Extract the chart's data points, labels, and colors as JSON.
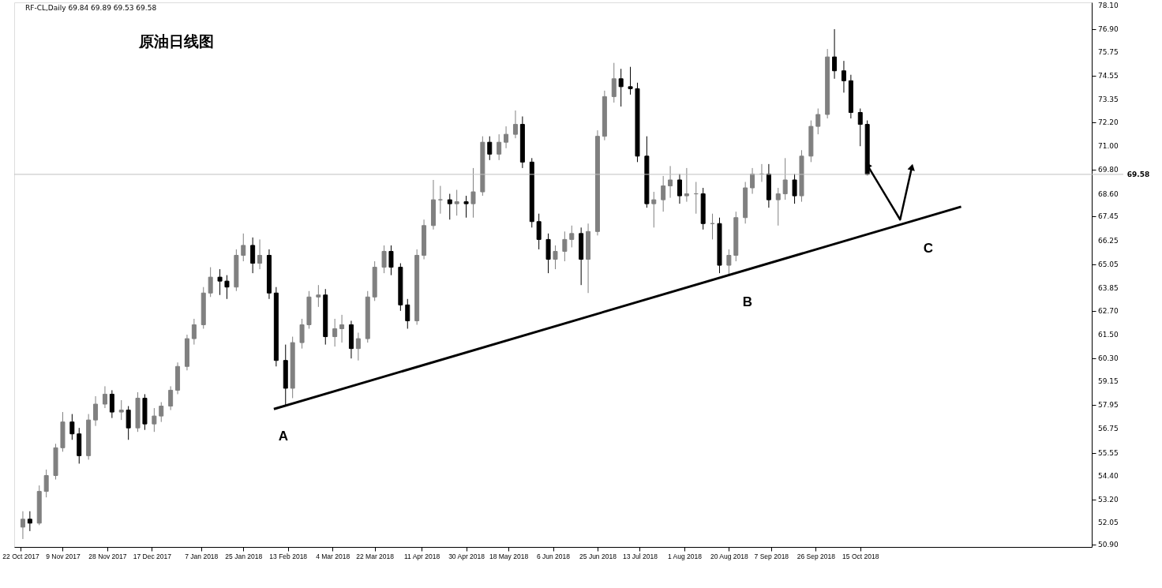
{
  "chart_data": {
    "type": "candlestick",
    "title": "原油日线图",
    "annotations": [
      "RF-CL,Daily  69.84 69.89 69.53 69.58",
      "A",
      "B",
      "C"
    ],
    "x": [
      "2017-10-23",
      "2017-10-26",
      "2017-10-30",
      "2017-11-02",
      "2017-11-06",
      "2017-11-09",
      "2017-11-13",
      "2017-11-16",
      "2017-11-20",
      "2017-11-23",
      "2017-11-27",
      "2017-11-30",
      "2017-12-04",
      "2017-12-07",
      "2017-12-11",
      "2017-12-14",
      "2017-12-18",
      "2017-12-21",
      "2017-12-25",
      "2017-12-28",
      "2018-01-01",
      "2018-01-04",
      "2018-01-08",
      "2018-01-11",
      "2018-01-15",
      "2018-01-18",
      "2018-01-22",
      "2018-01-25",
      "2018-01-29",
      "2018-02-01",
      "2018-02-05",
      "2018-02-08",
      "2018-02-12",
      "2018-02-15",
      "2018-02-19",
      "2018-02-22",
      "2018-02-26",
      "2018-03-01",
      "2018-03-05",
      "2018-03-08",
      "2018-03-12",
      "2018-03-15",
      "2018-03-19",
      "2018-03-22",
      "2018-03-26",
      "2018-03-29",
      "2018-04-02",
      "2018-04-05",
      "2018-04-09",
      "2018-04-12",
      "2018-04-16",
      "2018-04-19",
      "2018-04-23",
      "2018-04-26",
      "2018-04-30",
      "2018-05-03",
      "2018-05-07",
      "2018-05-10",
      "2018-05-14",
      "2018-05-17",
      "2018-05-21",
      "2018-05-24",
      "2018-05-28",
      "2018-05-31",
      "2018-06-04",
      "2018-06-07",
      "2018-06-11",
      "2018-06-14",
      "2018-06-18",
      "2018-06-21",
      "2018-06-25",
      "2018-06-28",
      "2018-07-02",
      "2018-07-05",
      "2018-07-09",
      "2018-07-12",
      "2018-07-16",
      "2018-07-19",
      "2018-07-23",
      "2018-07-26",
      "2018-07-30",
      "2018-08-02",
      "2018-08-06",
      "2018-08-09",
      "2018-08-13",
      "2018-08-16",
      "2018-08-20",
      "2018-08-23",
      "2018-08-27",
      "2018-08-30",
      "2018-09-03",
      "2018-09-06",
      "2018-09-10",
      "2018-09-13",
      "2018-09-17",
      "2018-09-20",
      "2018-09-24",
      "2018-09-27",
      "2018-10-01",
      "2018-10-04",
      "2018-10-08",
      "2018-10-11",
      "2018-10-15",
      "2018-10-18"
    ],
    "ohlc": [
      [
        51.8,
        52.6,
        51.2,
        52.2
      ],
      [
        52.2,
        52.6,
        51.6,
        52.0
      ],
      [
        52.0,
        53.9,
        51.9,
        53.6
      ],
      [
        53.6,
        54.7,
        53.3,
        54.4
      ],
      [
        54.4,
        56.0,
        54.2,
        55.8
      ],
      [
        55.8,
        57.6,
        55.6,
        57.1
      ],
      [
        57.1,
        57.5,
        56.2,
        56.5
      ],
      [
        56.5,
        56.8,
        55.0,
        55.4
      ],
      [
        55.4,
        57.5,
        55.2,
        57.2
      ],
      [
        57.2,
        58.4,
        56.9,
        58.0
      ],
      [
        58.0,
        58.9,
        57.8,
        58.5
      ],
      [
        58.5,
        58.7,
        57.3,
        57.6
      ],
      [
        57.6,
        58.2,
        57.2,
        57.7
      ],
      [
        57.7,
        57.9,
        56.2,
        56.8
      ],
      [
        56.8,
        58.6,
        56.6,
        58.3
      ],
      [
        58.3,
        58.5,
        56.7,
        57.0
      ],
      [
        57.0,
        57.8,
        56.6,
        57.4
      ],
      [
        57.4,
        58.1,
        57.1,
        57.9
      ],
      [
        57.9,
        58.9,
        57.7,
        58.7
      ],
      [
        58.7,
        60.1,
        58.5,
        59.9
      ],
      [
        59.9,
        61.5,
        59.7,
        61.3
      ],
      [
        61.3,
        62.3,
        61.0,
        62.0
      ],
      [
        62.0,
        63.9,
        61.8,
        63.6
      ],
      [
        63.6,
        64.9,
        63.4,
        64.4
      ],
      [
        64.4,
        64.8,
        63.5,
        64.2
      ],
      [
        64.2,
        64.5,
        63.3,
        63.9
      ],
      [
        63.9,
        65.8,
        63.7,
        65.5
      ],
      [
        65.5,
        66.6,
        65.2,
        66.0
      ],
      [
        66.0,
        66.4,
        64.6,
        65.1
      ],
      [
        65.1,
        66.3,
        64.8,
        65.5
      ],
      [
        65.5,
        65.8,
        63.3,
        63.6
      ],
      [
        63.6,
        63.9,
        59.9,
        60.2
      ],
      [
        60.2,
        61.0,
        57.9,
        58.8
      ],
      [
        58.8,
        61.4,
        58.3,
        61.1
      ],
      [
        61.1,
        62.3,
        60.8,
        62.0
      ],
      [
        62.0,
        63.7,
        61.8,
        63.4
      ],
      [
        63.4,
        64.0,
        62.9,
        63.5
      ],
      [
        63.5,
        63.8,
        61.0,
        61.4
      ],
      [
        61.4,
        62.3,
        60.9,
        61.8
      ],
      [
        61.8,
        62.5,
        61.1,
        62.0
      ],
      [
        62.0,
        62.2,
        60.3,
        60.8
      ],
      [
        60.8,
        61.6,
        60.2,
        61.3
      ],
      [
        61.3,
        63.7,
        61.1,
        63.4
      ],
      [
        63.4,
        65.2,
        63.2,
        64.9
      ],
      [
        64.9,
        66.0,
        64.6,
        65.7
      ],
      [
        65.7,
        66.0,
        64.5,
        64.9
      ],
      [
        64.9,
        65.1,
        62.7,
        63.0
      ],
      [
        63.0,
        63.3,
        61.8,
        62.2
      ],
      [
        62.2,
        65.8,
        62.0,
        65.5
      ],
      [
        65.5,
        67.3,
        65.3,
        67.0
      ],
      [
        67.0,
        69.3,
        66.8,
        68.3
      ],
      [
        68.3,
        69.0,
        67.6,
        68.3
      ],
      [
        68.3,
        68.6,
        67.3,
        68.1
      ],
      [
        68.1,
        68.8,
        67.5,
        68.2
      ],
      [
        68.2,
        68.5,
        67.4,
        68.1
      ],
      [
        68.1,
        69.9,
        67.4,
        68.7
      ],
      [
        68.7,
        71.5,
        68.5,
        71.2
      ],
      [
        71.2,
        71.5,
        70.3,
        70.6
      ],
      [
        70.6,
        71.6,
        70.3,
        71.2
      ],
      [
        71.2,
        72.0,
        70.9,
        71.6
      ],
      [
        71.6,
        72.8,
        71.4,
        72.1
      ],
      [
        72.1,
        72.5,
        69.9,
        70.2
      ],
      [
        70.2,
        70.4,
        66.9,
        67.2
      ],
      [
        67.2,
        67.6,
        65.8,
        66.3
      ],
      [
        66.3,
        66.6,
        64.6,
        65.3
      ],
      [
        65.3,
        66.0,
        64.8,
        65.7
      ],
      [
        65.7,
        66.7,
        65.2,
        66.3
      ],
      [
        66.3,
        67.0,
        65.9,
        66.6
      ],
      [
        66.6,
        66.9,
        64.0,
        65.3
      ],
      [
        65.3,
        67.1,
        63.6,
        66.7
      ],
      [
        66.7,
        71.8,
        66.5,
        71.5
      ],
      [
        71.5,
        73.8,
        71.3,
        73.5
      ],
      [
        73.5,
        75.2,
        73.2,
        74.4
      ],
      [
        74.4,
        74.9,
        73.0,
        74.0
      ],
      [
        74.0,
        75.0,
        73.6,
        73.9
      ],
      [
        73.9,
        74.2,
        70.2,
        70.5
      ],
      [
        70.5,
        71.5,
        67.9,
        68.1
      ],
      [
        68.1,
        68.7,
        66.9,
        68.3
      ],
      [
        68.3,
        69.5,
        67.7,
        69.0
      ],
      [
        69.0,
        70.0,
        68.4,
        69.3
      ],
      [
        69.3,
        69.6,
        68.1,
        68.5
      ],
      [
        68.5,
        69.9,
        68.2,
        68.6
      ],
      [
        68.6,
        69.2,
        67.6,
        68.6
      ],
      [
        68.6,
        68.9,
        66.8,
        67.1
      ],
      [
        67.1,
        67.6,
        66.3,
        67.1
      ],
      [
        67.1,
        67.4,
        64.6,
        65.0
      ],
      [
        65.0,
        65.8,
        64.5,
        65.5
      ],
      [
        65.5,
        67.7,
        65.2,
        67.4
      ],
      [
        67.4,
        69.2,
        67.1,
        68.9
      ],
      [
        68.9,
        69.9,
        68.6,
        69.6
      ],
      [
        69.6,
        70.1,
        69.2,
        69.6
      ],
      [
        69.6,
        70.1,
        67.9,
        68.3
      ],
      [
        68.3,
        68.9,
        67.0,
        68.6
      ],
      [
        68.6,
        70.4,
        68.3,
        69.3
      ],
      [
        69.3,
        69.6,
        68.1,
        68.5
      ],
      [
        68.5,
        70.8,
        68.2,
        70.5
      ],
      [
        70.5,
        72.3,
        70.2,
        72.0
      ],
      [
        72.0,
        72.9,
        71.6,
        72.6
      ],
      [
        72.6,
        75.9,
        72.4,
        75.5
      ],
      [
        75.5,
        76.9,
        74.4,
        74.8
      ],
      [
        74.8,
        75.3,
        73.7,
        74.3
      ],
      [
        74.3,
        74.6,
        72.4,
        72.7
      ],
      [
        72.7,
        72.9,
        71.0,
        72.1
      ],
      [
        72.1,
        72.3,
        69.53,
        69.58
      ]
    ],
    "colors": [
      "#808080",
      "#000000",
      "#808080",
      "#808080",
      "#808080",
      "#808080",
      "#000000",
      "#000000",
      "#808080",
      "#808080",
      "#808080",
      "#000000",
      "#808080",
      "#000000",
      "#808080",
      "#000000",
      "#808080",
      "#808080",
      "#808080",
      "#808080",
      "#808080",
      "#808080",
      "#808080",
      "#808080",
      "#000000",
      "#000000",
      "#808080",
      "#808080",
      "#000000",
      "#808080",
      "#000000",
      "#000000",
      "#000000",
      "#808080",
      "#808080",
      "#808080",
      "#808080",
      "#000000",
      "#808080",
      "#808080",
      "#000000",
      "#808080",
      "#808080",
      "#808080",
      "#808080",
      "#000000",
      "#000000",
      "#000000",
      "#808080",
      "#808080",
      "#808080",
      "#808080",
      "#000000",
      "#808080",
      "#000000",
      "#808080",
      "#808080",
      "#000000",
      "#808080",
      "#808080",
      "#808080",
      "#000000",
      "#000000",
      "#000000",
      "#000000",
      "#808080",
      "#808080",
      "#808080",
      "#000000",
      "#808080",
      "#808080",
      "#808080",
      "#808080",
      "#000000",
      "#000000",
      "#000000",
      "#000000",
      "#808080",
      "#808080",
      "#808080",
      "#000000",
      "#808080",
      "#808080",
      "#000000",
      "#808080",
      "#000000",
      "#808080",
      "#808080",
      "#808080",
      "#808080",
      "#808080",
      "#000000",
      "#808080",
      "#808080",
      "#000000",
      "#808080",
      "#808080",
      "#808080",
      "#808080",
      "#000000",
      "#000000",
      "#000000",
      "#000000",
      "#000000"
    ],
    "series": [
      {
        "type": "line",
        "color": "#000000",
        "x": [
          "2018-02-07",
          "2018-11-27"
        ],
        "values": [
          57.75,
          67.95
        ]
      },
      {
        "type": "line",
        "marker": "triangle",
        "color": "#000000",
        "x": [
          "2018-10-18",
          "2018-11-01",
          "2018-11-06"
        ],
        "values": [
          70.05,
          67.3,
          69.95
        ]
      }
    ],
    "ref_lines": [
      {
        "axis": "y",
        "value": 69.58,
        "label": "69.58",
        "color": "#c0c0c0"
      }
    ],
    "xlim": [
      "2017-10-21",
      "2019-01-20"
    ],
    "xticks": [
      {
        "value": "2017-10-22",
        "label": "22 Oct 2017"
      },
      {
        "value": "2017-11-09",
        "label": "9 Nov 2017"
      },
      {
        "value": "2017-11-28",
        "label": "28 Nov 2017"
      },
      {
        "value": "2017-12-17",
        "label": "17 Dec 2017"
      },
      {
        "value": "2018-01-07",
        "label": "7 Jan 2018"
      },
      {
        "value": "2018-01-25",
        "label": "25 Jan 2018"
      },
      {
        "value": "2018-02-13",
        "label": "13 Feb 2018"
      },
      {
        "value": "2018-03-04",
        "label": "4 Mar 2018"
      },
      {
        "value": "2018-03-22",
        "label": "22 Mar 2018"
      },
      {
        "value": "2018-04-11",
        "label": "11 Apr 2018"
      },
      {
        "value": "2018-04-30",
        "label": "30 Apr 2018"
      },
      {
        "value": "2018-05-18",
        "label": "18 May 2018"
      },
      {
        "value": "2018-06-06",
        "label": "6 Jun 2018"
      },
      {
        "value": "2018-06-25",
        "label": "25 Jun 2018"
      },
      {
        "value": "2018-07-13",
        "label": "13 Jul 2018"
      },
      {
        "value": "2018-08-01",
        "label": "1 Aug 2018"
      },
      {
        "value": "2018-08-20",
        "label": "20 Aug 2018"
      },
      {
        "value": "2018-09-07",
        "label": "7 Sep 2018"
      },
      {
        "value": "2018-09-26",
        "label": "26 Sep 2018"
      },
      {
        "value": "2018-10-15",
        "label": "15 Oct 2018"
      }
    ],
    "ylim": [
      50.8,
      78.25
    ],
    "yticks": [
      {
        "value": 50.9,
        "label": "50.90"
      },
      {
        "value": 52.05,
        "label": "52.05"
      },
      {
        "value": 53.2,
        "label": "53.20"
      },
      {
        "value": 54.4,
        "label": "54.40"
      },
      {
        "value": 55.55,
        "label": "55.55"
      },
      {
        "value": 56.75,
        "label": "56.75"
      },
      {
        "value": 57.95,
        "label": "57.95"
      },
      {
        "value": 59.15,
        "label": "59.15"
      },
      {
        "value": 60.3,
        "label": "60.30"
      },
      {
        "value": 61.5,
        "label": "61.50"
      },
      {
        "value": 62.7,
        "label": "62.70"
      },
      {
        "value": 63.85,
        "label": "63.85"
      },
      {
        "value": 65.05,
        "label": "65.05"
      },
      {
        "value": 66.25,
        "label": "66.25"
      },
      {
        "value": 67.45,
        "label": "67.45"
      },
      {
        "value": 68.6,
        "label": "68.60"
      },
      {
        "value": 69.8,
        "label": "69.80"
      },
      {
        "value": 71.0,
        "label": "71.00"
      },
      {
        "value": 72.2,
        "label": "72.20"
      },
      {
        "value": 73.35,
        "label": "73.35"
      },
      {
        "value": 74.55,
        "label": "74.55"
      },
      {
        "value": 75.75,
        "label": "75.75"
      },
      {
        "value": 76.9,
        "label": "76.90"
      },
      {
        "value": 78.1,
        "label": "78.10"
      }
    ]
  }
}
